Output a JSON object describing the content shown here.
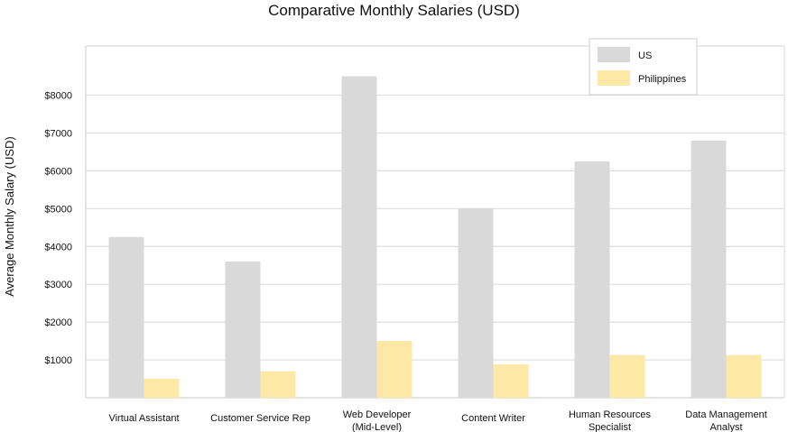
{
  "chart_data": {
    "type": "bar",
    "title": "Comparative Monthly Salaries (USD)",
    "xlabel": "",
    "ylabel": "Average Monthly Salary (USD)",
    "ylim": [
      0,
      9300
    ],
    "yticks": [
      1000,
      2000,
      3000,
      4000,
      5000,
      6000,
      7000,
      8000
    ],
    "ytick_labels": [
      "$1000",
      "$2000",
      "$3000",
      "$4000",
      "$5000",
      "$6000",
      "$7000",
      "$8000"
    ],
    "grid": true,
    "legend_position": "top-right",
    "categories": [
      [
        "Virtual Assistant"
      ],
      [
        "Customer Service Rep"
      ],
      [
        "Web Developer",
        "(Mid-Level)"
      ],
      [
        "Content Writer"
      ],
      [
        "Human Resources",
        "Specialist"
      ],
      [
        "Data Management",
        "Analyst"
      ]
    ],
    "series": [
      {
        "name": "US",
        "color": "#d9d9d9",
        "values": [
          4250,
          3600,
          8500,
          5000,
          6250,
          6800
        ]
      },
      {
        "name": "Philippines",
        "color": "#fde9a5",
        "values": [
          500,
          700,
          1500,
          880,
          1130,
          1130
        ]
      }
    ]
  }
}
